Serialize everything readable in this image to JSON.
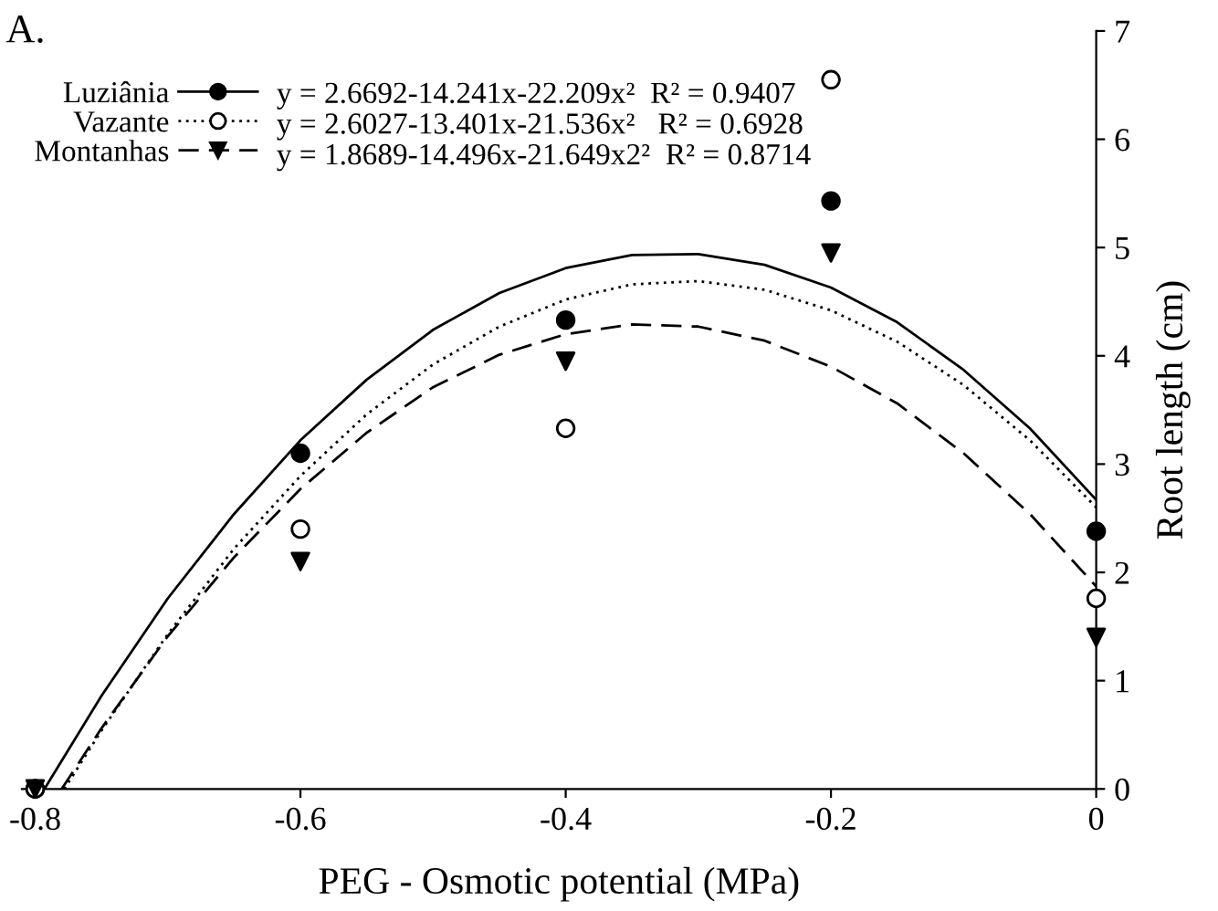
{
  "chart_data": {
    "type": "scatter",
    "title": "A.",
    "xlabel": "PEG - Osmotic potential (MPa)",
    "ylabel": "Root length (cm)",
    "x": [
      -0.8,
      -0.6,
      -0.4,
      -0.2,
      0
    ],
    "series": [
      {
        "name": "Luziânia",
        "color": "#000000",
        "marker": "circle",
        "values": [
          0,
          3.1,
          4.33,
          5.43,
          2.38
        ]
      },
      {
        "name": "Vazante",
        "color": "#ffffff",
        "marker": "circle",
        "values": [
          0,
          2.4,
          3.33,
          6.55,
          1.76
        ]
      },
      {
        "name": "Montanhas",
        "color": "#000000",
        "marker": "triangle",
        "values": [
          0,
          2.1,
          3.95,
          4.95,
          1.4
        ]
      },
      {
        "type": "line",
        "color": "#000000",
        "line_style": "solid",
        "x": [
          -0.793,
          -0.75,
          -0.7,
          -0.65,
          -0.6,
          -0.55,
          -0.5,
          -0.45,
          -0.4,
          -0.35,
          -0.3,
          -0.25,
          -0.2,
          -0.15,
          -0.1,
          -0.05,
          0
        ],
        "values": [
          0,
          0.86,
          1.76,
          2.54,
          3.22,
          3.78,
          4.24,
          4.58,
          4.81,
          4.93,
          4.94,
          4.84,
          4.63,
          4.31,
          3.87,
          3.33,
          2.67
        ]
      },
      {
        "type": "line",
        "color": "#000000",
        "line_style": "dotted",
        "x": [
          -0.778,
          -0.75,
          -0.7,
          -0.65,
          -0.6,
          -0.55,
          -0.5,
          -0.45,
          -0.4,
          -0.35,
          -0.3,
          -0.25,
          -0.2,
          -0.15,
          -0.1,
          -0.05,
          0
        ],
        "values": [
          0,
          0.54,
          1.43,
          2.22,
          2.89,
          3.46,
          3.92,
          4.27,
          4.52,
          4.66,
          4.69,
          4.61,
          4.42,
          4.13,
          3.73,
          3.22,
          2.6
        ]
      },
      {
        "type": "line",
        "color": "#000000",
        "line_style": "dashed",
        "x": [
          -0.78,
          -0.75,
          -0.7,
          -0.65,
          -0.6,
          -0.55,
          -0.5,
          -0.45,
          -0.4,
          -0.35,
          -0.3,
          -0.25,
          -0.2,
          -0.15,
          -0.1,
          -0.05,
          0
        ],
        "values": [
          0,
          0.56,
          1.41,
          2.14,
          2.77,
          3.29,
          3.71,
          4.01,
          4.2,
          4.29,
          4.27,
          4.14,
          3.9,
          3.56,
          3.1,
          2.54,
          1.87
        ]
      }
    ],
    "annotations": [
      "y = 2.6692-14.241x-22.209x²  R² = 0.9407",
      "y = 2.6027-13.401x-21.536x²   R² = 0.6928",
      "y = 1.8689-14.496x-21.649x2²  R² = 0.8714"
    ],
    "xlim": [
      -0.81,
      0
    ],
    "ylim": [
      0,
      7
    ],
    "xticks": [
      -0.8,
      -0.6,
      -0.4,
      -0.2,
      0
    ],
    "yticks": [
      0,
      1,
      2,
      3,
      4,
      5,
      6,
      7
    ],
    "grid": false,
    "legend": "top left"
  }
}
